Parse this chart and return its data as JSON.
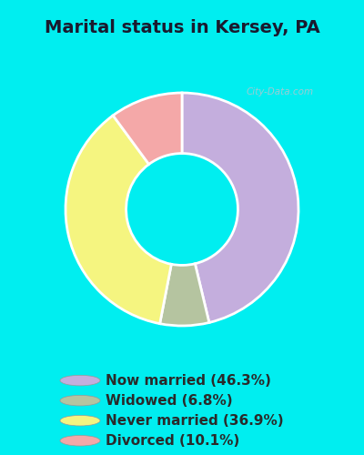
{
  "title": "Marital status in Kersey, PA",
  "slices": [
    46.3,
    6.8,
    36.9,
    10.1
  ],
  "labels": [
    "Now married (46.3%)",
    "Widowed (6.8%)",
    "Never married (36.9%)",
    "Divorced (10.1%)"
  ],
  "colors": [
    "#c4aedd",
    "#b5c4a0",
    "#f5f580",
    "#f4a8a8"
  ],
  "startangle": 90,
  "background_cyan": "#00eef0",
  "background_inner": "#dff0e8",
  "title_fontsize": 14,
  "legend_fontsize": 11,
  "watermark": "City-Data.com",
  "title_color": "#1a1a2e",
  "legend_text_color": "#2a2a2a"
}
